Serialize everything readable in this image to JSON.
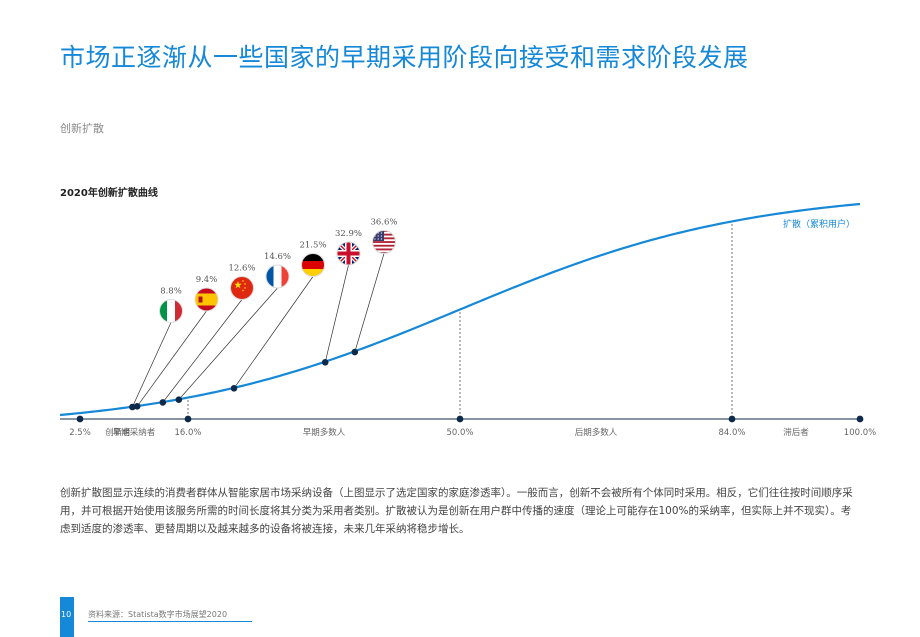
{
  "header": {
    "title": "市场正逐渐从一些国家的早期采用阶段向接受和需求阶段发展",
    "section_label": "创新扩散"
  },
  "chart_data": {
    "type": "line",
    "title": "2020年创新扩散曲线",
    "series_label": "扩散（累积用户）",
    "xlim": [
      0,
      100
    ],
    "ylim": [
      0,
      100
    ],
    "milestones": [
      {
        "x": 2.5,
        "label": "2.5%"
      },
      {
        "x": 16.0,
        "label": "16.0%"
      },
      {
        "x": 50.0,
        "label": "50.0%"
      },
      {
        "x": 84.0,
        "label": "84.0%"
      },
      {
        "x": 100.0,
        "label": "100.0%"
      }
    ],
    "categories": [
      {
        "name": "创新者",
        "x_center": 1.25
      },
      {
        "name": "早期采纳者",
        "x_center": 9.25
      },
      {
        "name": "早期多数人",
        "x_center": 33
      },
      {
        "name": "后期多数人",
        "x_center": 67
      },
      {
        "name": "滞后者",
        "x_center": 92
      }
    ],
    "countries": [
      {
        "country": "意大利",
        "flag": "italy-flag-icon",
        "value": 8.8,
        "label": "8.8%"
      },
      {
        "country": "西班牙",
        "flag": "spain-flag-icon",
        "value": 9.4,
        "label": "9.4%"
      },
      {
        "country": "中国",
        "flag": "china-flag-icon",
        "value": 12.6,
        "label": "12.6%"
      },
      {
        "country": "法国",
        "flag": "france-flag-icon",
        "value": 14.6,
        "label": "14.6%"
      },
      {
        "country": "德国",
        "flag": "germany-flag-icon",
        "value": 21.5,
        "label": "21.5%"
      },
      {
        "country": "英国",
        "flag": "uk-flag-icon",
        "value": 32.9,
        "label": "32.9%"
      },
      {
        "country": "美国",
        "flag": "usa-flag-icon",
        "value": 36.6,
        "label": "36.6%"
      }
    ],
    "colors": {
      "curve": "#1688d8",
      "marker": "#0d2a4a"
    }
  },
  "body": {
    "description": "创新扩散图显示连续的消费者群体从智能家居市场采纳设备（上图显示了选定国家的家庭渗透率）。一般而言，创新不会被所有个体同时采用。相反，它们往往按时间顺序采用，并可根据开始使用该服务所需的时间长度将其分类为采用者类别。扩散被认为是创新在用户群中传播的速度（理论上可能存在100%的采纳率，但实际上并不现实）。考虑到适度的渗透率、更替周期以及越来越多的设备将被连接，未来几年采纳将稳步增长。"
  },
  "footer": {
    "page_number": "10",
    "source": "资料来源：Statista数字市场展望2020"
  }
}
